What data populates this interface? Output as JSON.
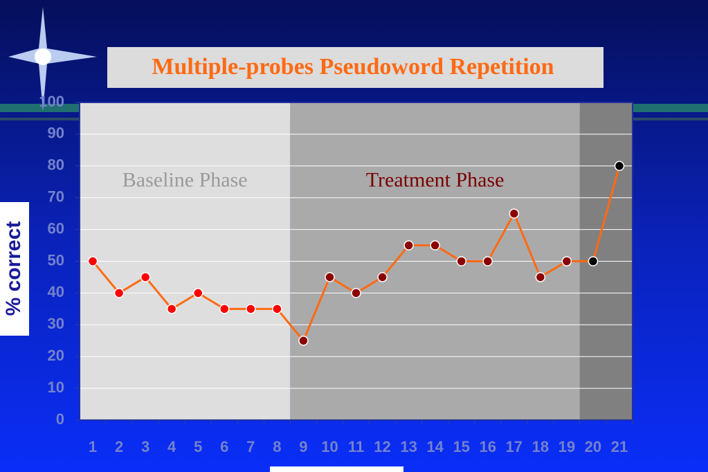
{
  "chart_data": {
    "type": "line",
    "title": "Multiple-probes Pseudoword Repetition",
    "y_label": "% correct",
    "categories": [
      "1",
      "2",
      "3",
      "4",
      "5",
      "6",
      "7",
      "8",
      "9",
      "10",
      "11",
      "12",
      "13",
      "14",
      "15",
      "16",
      "17",
      "18",
      "19",
      "20",
      "21"
    ],
    "series": [
      {
        "color": "#ff6a13",
        "values": [
          50,
          40,
          45,
          35,
          40,
          35,
          35,
          35,
          25,
          45,
          40,
          45,
          55,
          55,
          50,
          50,
          65,
          45,
          50,
          50,
          80
        ],
        "marker_colors": [
          "#ff0000",
          "#ff0000",
          "#ff0000",
          "#ff0000",
          "#ff0000",
          "#ff0000",
          "#ff0000",
          "#ff0000",
          "#8b0000",
          "#8b0000",
          "#8b0000",
          "#8b0000",
          "#8b0000",
          "#8b0000",
          "#8b0000",
          "#8b0000",
          "#8b0000",
          "#8b0000",
          "#8b0000",
          "#000000",
          "#000000"
        ]
      }
    ],
    "phases": [
      {
        "label": "Baseline Phase",
        "from": "1",
        "to": "8",
        "color": "#dedede",
        "label_color": "#9a9a9a"
      },
      {
        "label": "Treatment Phase",
        "from": "9",
        "to": "19",
        "color": "#aaaaaa",
        "label_color": "#7a0000"
      },
      {
        "label": null,
        "from": "20",
        "to": "21",
        "color": "#808080",
        "label_color": "#000000"
      }
    ],
    "ylim": [
      0,
      100
    ],
    "yticks": [
      0,
      10,
      20,
      30,
      40,
      50,
      60,
      70,
      80,
      90,
      100
    ],
    "grid": true
  }
}
